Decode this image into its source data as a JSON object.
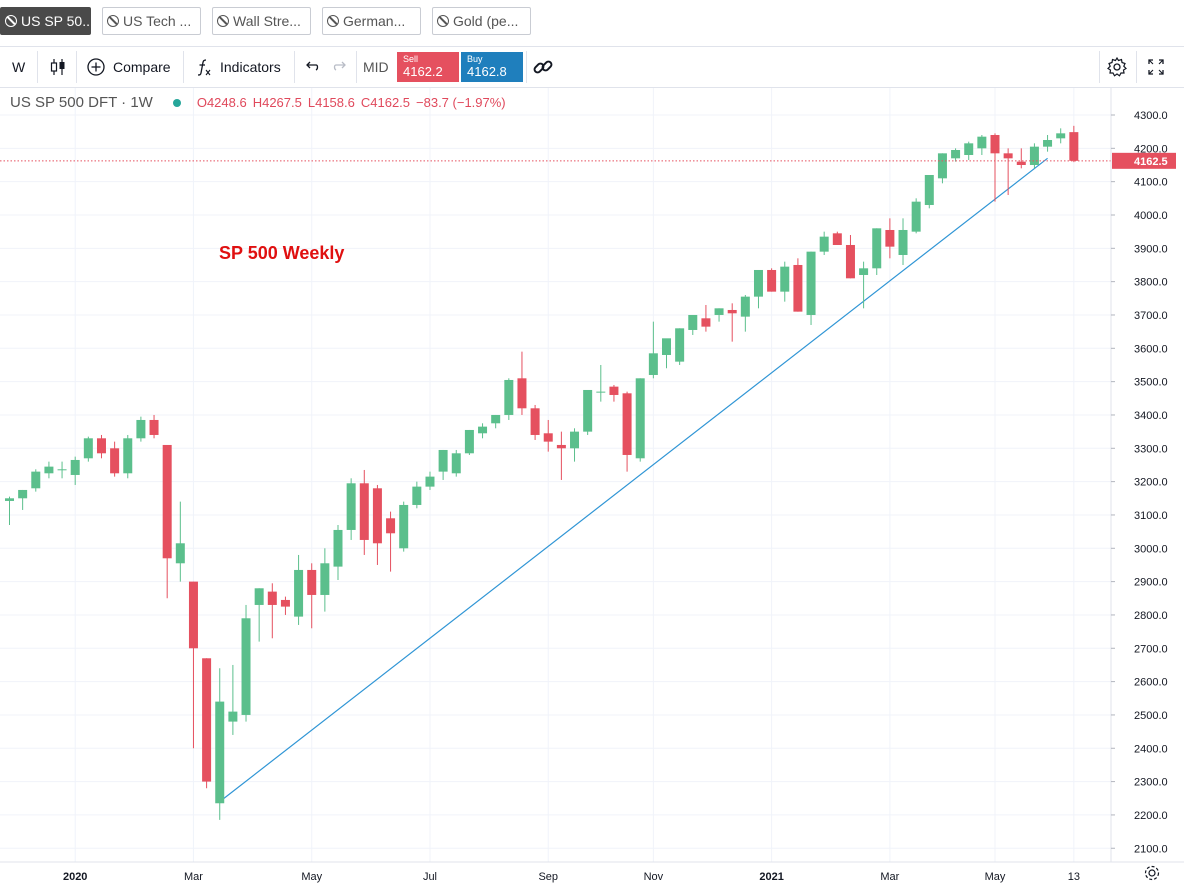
{
  "tabs": [
    {
      "label": "US SP 50...",
      "active": true
    },
    {
      "label": "US Tech ...",
      "active": false
    },
    {
      "label": "Wall Stre...",
      "active": false
    },
    {
      "label": "German...",
      "active": false
    },
    {
      "label": "Gold (pe...",
      "active": false
    }
  ],
  "toolbar": {
    "interval": "W",
    "compare_label": "Compare",
    "indicators_label": "Indicators",
    "price_mode": "MID",
    "sell_label": "Sell",
    "sell_price": "4162.2",
    "buy_label": "Buy",
    "buy_price": "4162.8"
  },
  "legend": {
    "symbol": "US SP 500 DFT · 1W",
    "open": "O4248.6",
    "high": "H4267.5",
    "low": "L4158.6",
    "close": "C4162.5",
    "change": "−83.7 (−1.97%)"
  },
  "annotation": "SP 500 Weekly",
  "colors": {
    "up": "#5bbf8c",
    "down": "#e5505f",
    "trendline": "#2f95d5",
    "price_line": "#e5505f"
  },
  "chart_data": {
    "type": "candlestick",
    "interval": "weekly",
    "y_ticks": [
      2100,
      2200,
      2300,
      2400,
      2500,
      2600,
      2700,
      2800,
      2900,
      3000,
      3100,
      3200,
      3300,
      3400,
      3500,
      3600,
      3700,
      3800,
      3900,
      4000,
      4100,
      4200,
      4300
    ],
    "ylim": [
      2060,
      4360
    ],
    "last_price_label": "4162.5",
    "last_price": 4162.5,
    "x_ticks": [
      {
        "label": "2020",
        "index": 5
      },
      {
        "label": "Mar",
        "index": 14
      },
      {
        "label": "May",
        "index": 23
      },
      {
        "label": "Jul",
        "index": 32
      },
      {
        "label": "Sep",
        "index": 41
      },
      {
        "label": "Nov",
        "index": 49
      },
      {
        "label": "2021",
        "index": 58
      },
      {
        "label": "Mar",
        "index": 67
      },
      {
        "label": "May",
        "index": 75
      },
      {
        "label": "13",
        "index": 81
      }
    ],
    "ohlc": [
      [
        3142,
        3155,
        3070,
        3150
      ],
      [
        3150,
        3175,
        3115,
        3175
      ],
      [
        3180,
        3237,
        3170,
        3230
      ],
      [
        3225,
        3260,
        3210,
        3245
      ],
      [
        3237,
        3260,
        3210,
        3237
      ],
      [
        3220,
        3275,
        3190,
        3265
      ],
      [
        3270,
        3335,
        3260,
        3330
      ],
      [
        3330,
        3340,
        3270,
        3285
      ],
      [
        3300,
        3320,
        3215,
        3225
      ],
      [
        3225,
        3340,
        3210,
        3330
      ],
      [
        3330,
        3395,
        3320,
        3385
      ],
      [
        3385,
        3400,
        3330,
        3340
      ],
      [
        3310,
        3310,
        2850,
        2970
      ],
      [
        2955,
        3140,
        2900,
        3015
      ],
      [
        2900,
        2900,
        2400,
        2700
      ],
      [
        2670,
        2670,
        2280,
        2300
      ],
      [
        2235,
        2640,
        2185,
        2540
      ],
      [
        2480,
        2650,
        2440,
        2510
      ],
      [
        2500,
        2830,
        2480,
        2790
      ],
      [
        2830,
        2880,
        2720,
        2880
      ],
      [
        2870,
        2895,
        2730,
        2830
      ],
      [
        2845,
        2855,
        2800,
        2825
      ],
      [
        2795,
        2980,
        2770,
        2935
      ],
      [
        2935,
        2955,
        2760,
        2860
      ],
      [
        2860,
        3000,
        2810,
        2955
      ],
      [
        2945,
        3070,
        2905,
        3055
      ],
      [
        3055,
        3210,
        3025,
        3195
      ],
      [
        3195,
        3235,
        2980,
        3025
      ],
      [
        3180,
        3190,
        2950,
        3015
      ],
      [
        3090,
        3110,
        2930,
        3045
      ],
      [
        3000,
        3140,
        2990,
        3130
      ],
      [
        3130,
        3200,
        3120,
        3185
      ],
      [
        3185,
        3230,
        3175,
        3215
      ],
      [
        3230,
        3295,
        3205,
        3295
      ],
      [
        3225,
        3295,
        3215,
        3285
      ],
      [
        3285,
        3355,
        3280,
        3355
      ],
      [
        3345,
        3375,
        3330,
        3365
      ],
      [
        3375,
        3400,
        3360,
        3400
      ],
      [
        3400,
        3510,
        3385,
        3505
      ],
      [
        3510,
        3590,
        3400,
        3420
      ],
      [
        3420,
        3430,
        3325,
        3340
      ],
      [
        3345,
        3385,
        3290,
        3320
      ],
      [
        3310,
        3350,
        3205,
        3300
      ],
      [
        3300,
        3360,
        3260,
        3350
      ],
      [
        3350,
        3470,
        3340,
        3475
      ],
      [
        3470,
        3550,
        3440,
        3470
      ],
      [
        3485,
        3490,
        3440,
        3460
      ],
      [
        3465,
        3470,
        3230,
        3280
      ],
      [
        3270,
        3510,
        3260,
        3510
      ],
      [
        3520,
        3680,
        3510,
        3585
      ],
      [
        3580,
        3620,
        3540,
        3630
      ],
      [
        3560,
        3660,
        3550,
        3660
      ],
      [
        3655,
        3700,
        3640,
        3700
      ],
      [
        3690,
        3730,
        3650,
        3665
      ],
      [
        3700,
        3720,
        3680,
        3720
      ],
      [
        3715,
        3735,
        3620,
        3705
      ],
      [
        3695,
        3760,
        3650,
        3755
      ],
      [
        3755,
        3830,
        3720,
        3835
      ],
      [
        3835,
        3840,
        3770,
        3770
      ],
      [
        3770,
        3860,
        3740,
        3845
      ],
      [
        3850,
        3870,
        3710,
        3710
      ],
      [
        3700,
        3890,
        3670,
        3890
      ],
      [
        3890,
        3950,
        3880,
        3935
      ],
      [
        3945,
        3950,
        3910,
        3910
      ],
      [
        3910,
        3940,
        3810,
        3810
      ],
      [
        3820,
        3860,
        3720,
        3840
      ],
      [
        3840,
        3960,
        3820,
        3960
      ],
      [
        3955,
        3990,
        3870,
        3905
      ],
      [
        3880,
        3990,
        3850,
        3955
      ],
      [
        3950,
        4050,
        3945,
        4040
      ],
      [
        4030,
        4120,
        4020,
        4120
      ],
      [
        4110,
        4185,
        4095,
        4185
      ],
      [
        4170,
        4200,
        4160,
        4195
      ],
      [
        4180,
        4220,
        4165,
        4215
      ],
      [
        4200,
        4240,
        4180,
        4235
      ],
      [
        4240,
        4245,
        4040,
        4185
      ],
      [
        4185,
        4200,
        4060,
        4170
      ],
      [
        4160,
        4200,
        4140,
        4150
      ],
      [
        4150,
        4215,
        4140,
        4205
      ],
      [
        4205,
        4240,
        4190,
        4225
      ],
      [
        4230,
        4260,
        4215,
        4245
      ],
      [
        4248.6,
        4267.5,
        4158.6,
        4162.5
      ]
    ],
    "trendline": {
      "from": {
        "index": 16,
        "value": 2240
      },
      "to": {
        "index": 79,
        "value": 4170
      }
    }
  }
}
